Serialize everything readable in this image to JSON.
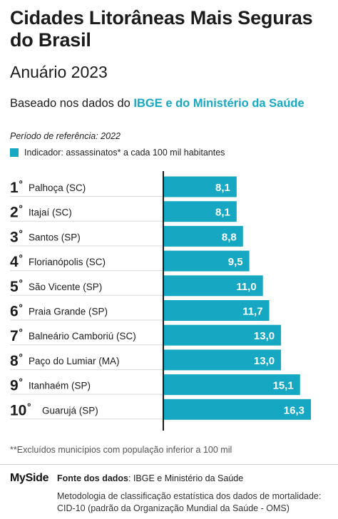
{
  "header": {
    "title": "Cidades Litorâneas Mais Seguras do Brasil",
    "subtitle": "Anuário 2023",
    "basis_prefix": "Baseado nos dados do ",
    "basis_highlight": "IBGE e do Ministério da Saúde",
    "period": "Período de referência: 2022"
  },
  "legend": {
    "label": "Indicador: assassinatos* a cada 100 mil habitantes"
  },
  "colors": {
    "bar": "#16a8c3",
    "highlight": "#16a8c3"
  },
  "chart_data": {
    "type": "bar",
    "orientation": "horizontal",
    "title": "Cidades Litorâneas Mais Seguras do Brasil",
    "subtitle": "Anuário 2023",
    "categories": [
      {
        "rank": "1º",
        "label": "Palhoça (SC)"
      },
      {
        "rank": "2º",
        "label": "Itajaí (SC)"
      },
      {
        "rank": "3º",
        "label": "Santos (SP)"
      },
      {
        "rank": "4º",
        "label": "Florianópolis (SC)"
      },
      {
        "rank": "5º",
        "label": "São Vicente (SP)"
      },
      {
        "rank": "6º",
        "label": "Praia Grande (SP)"
      },
      {
        "rank": "7º",
        "label": "Balneário Camboriú (SC)"
      },
      {
        "rank": "8º",
        "label": "Paço do Lumiar (MA)"
      },
      {
        "rank": "9º",
        "label": "Itanhaém (SP)"
      },
      {
        "rank": "10º",
        "label": "Guarujá (SP)"
      }
    ],
    "values": [
      8.1,
      8.1,
      8.8,
      9.5,
      11.0,
      11.7,
      13.0,
      13.0,
      15.1,
      16.3
    ],
    "value_labels": [
      "8,1",
      "8,1",
      "8,8",
      "9,5",
      "11,0",
      "11,7",
      "13,0",
      "13,0",
      "15,1",
      "16,3"
    ],
    "legend": [
      "Indicador: assassinatos* a cada 100 mil habitantes"
    ],
    "grid": false,
    "data_labels": "inside-end"
  },
  "footer": {
    "note": "**Excluídos municípios com população inferior a 100 mil",
    "logo": "MySide",
    "source_label": "Fonte dos dados",
    "source_text": ": IBGE e Ministério da Saúde",
    "methodology": "Metodologia de classificação estatística dos dados de mortalidade: CID-10 (padrão da Organização Mundial da Saúde - OMS)"
  }
}
